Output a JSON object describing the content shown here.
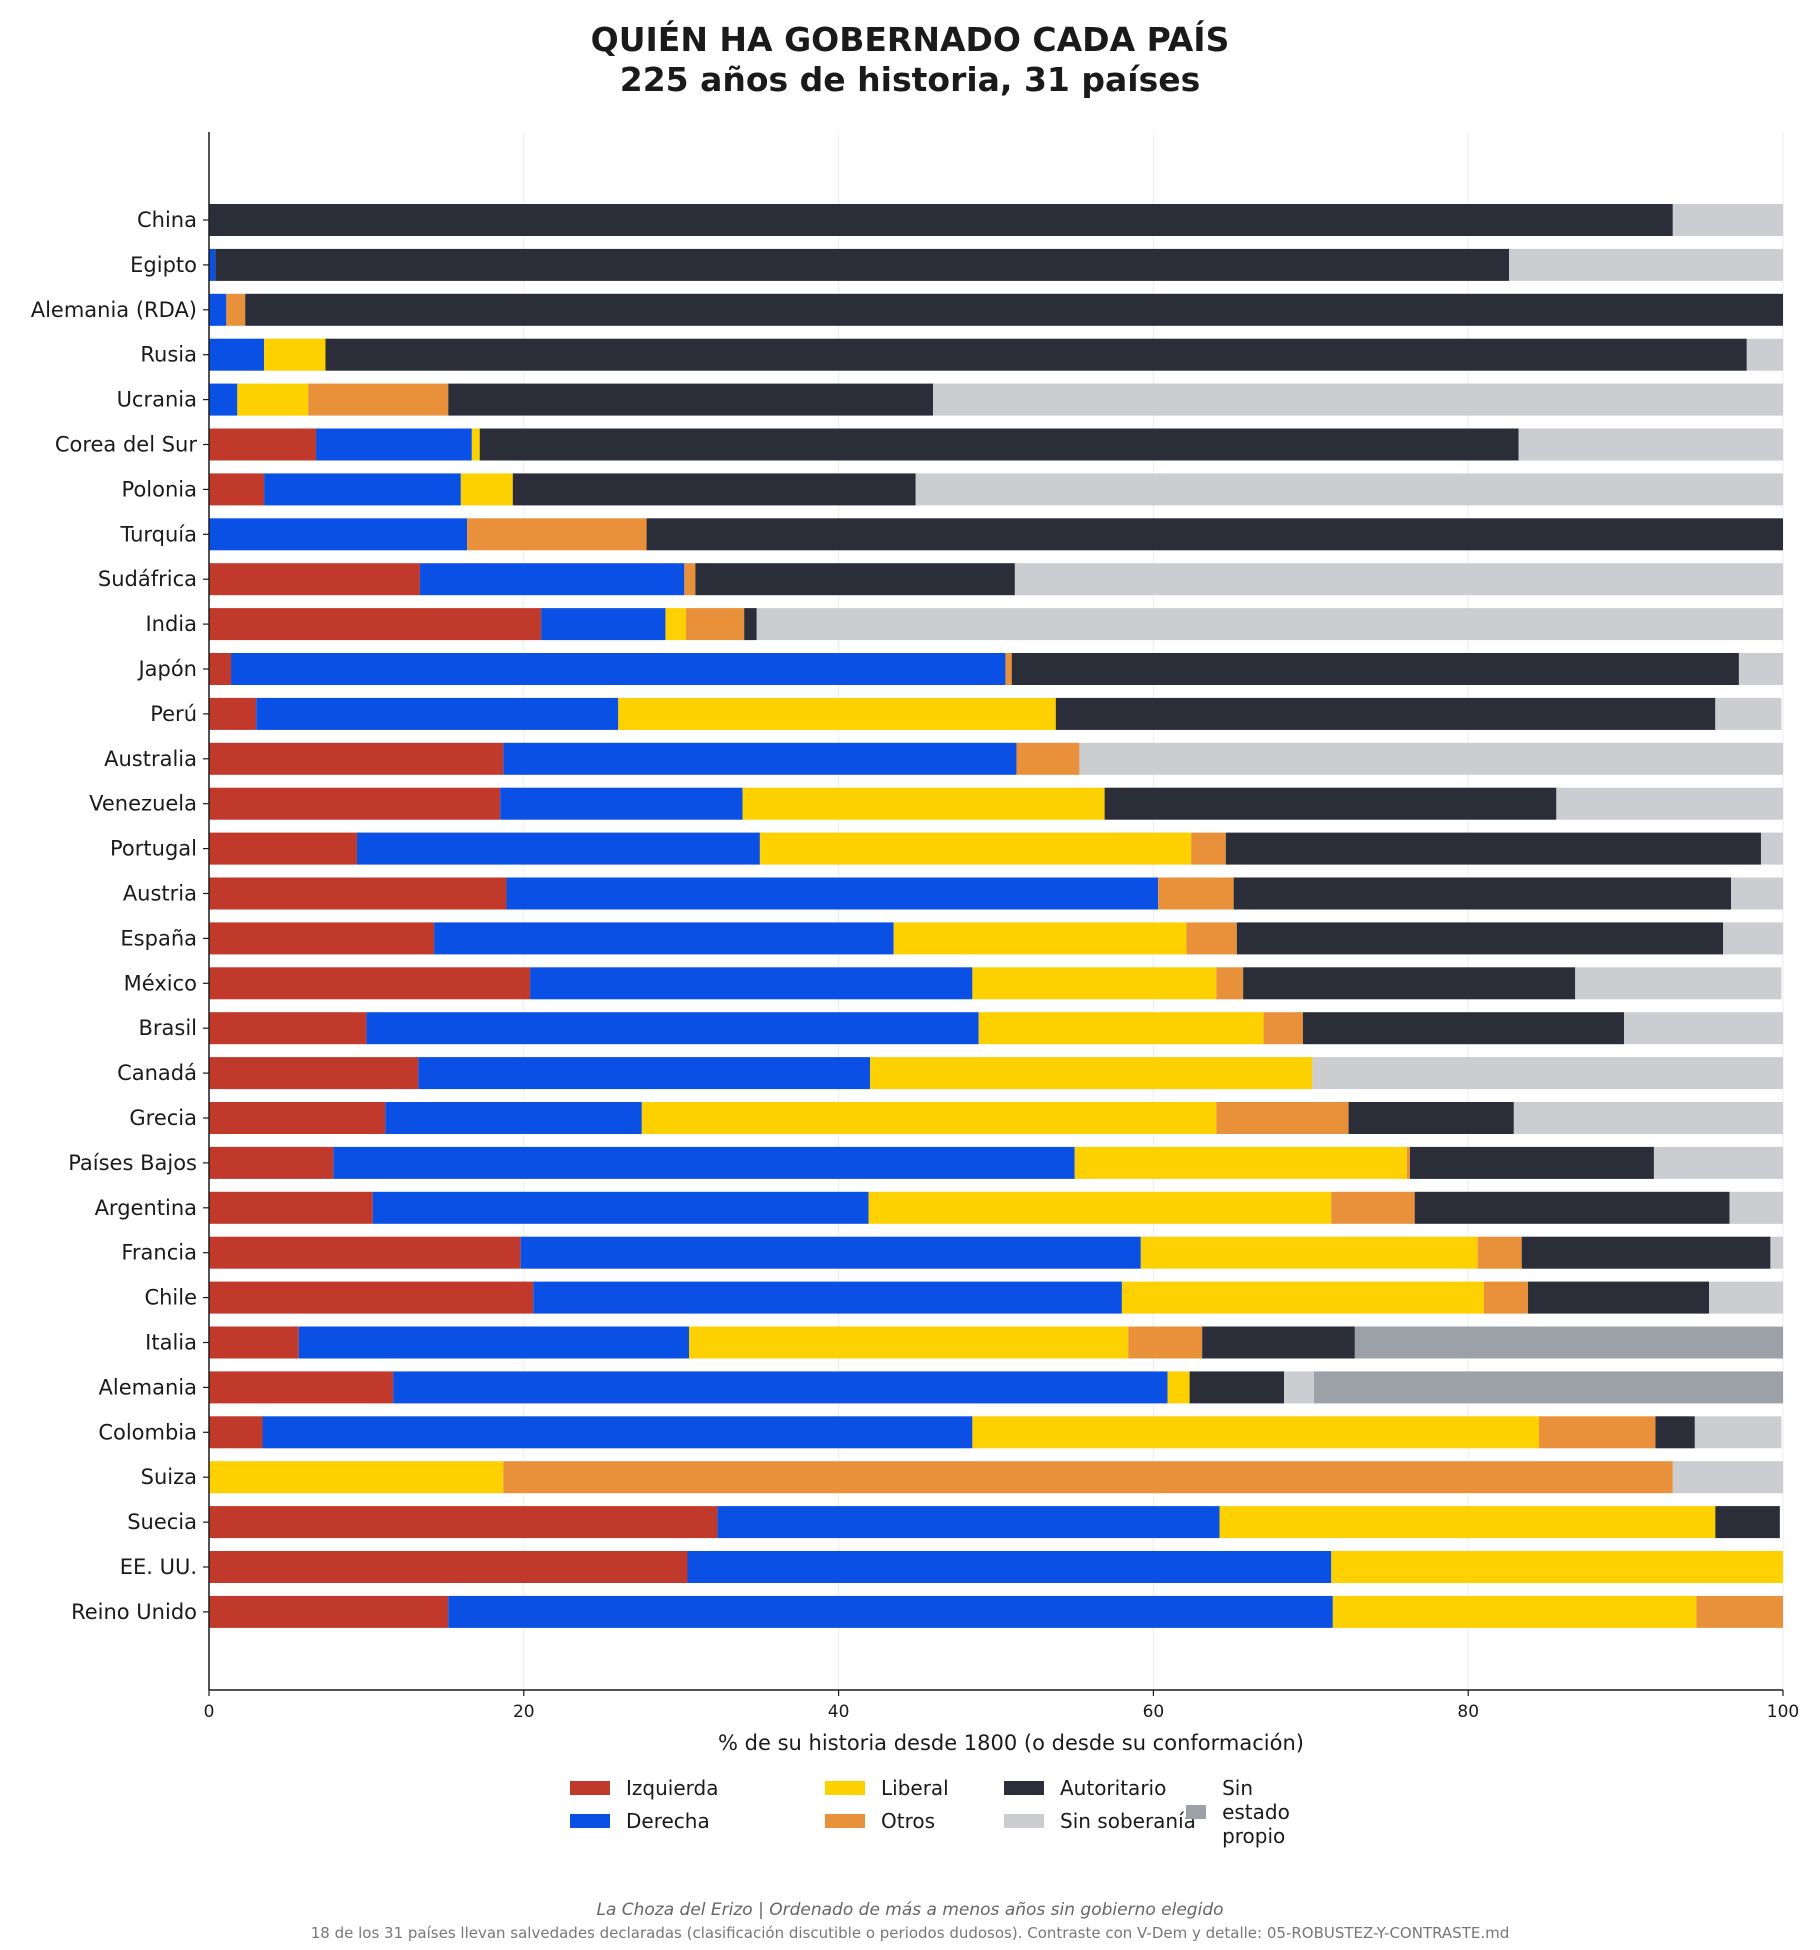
{
  "title_line1": "QUIÉN HA GOBERNADO CADA PAÍS",
  "title_line2": "225 años de historia, 31 países",
  "footer_main": "La Choza del Erizo  |  Ordenado de más a menos años sin gobierno elegido",
  "footer_note": "18 de los 31 países llevan salvedades declaradas (clasificación discutible o periodos dudosos). Contraste con V-Dem y detalle: 05-ROBUSTEZ-Y-CONTRASTE.md",
  "chart_data": {
    "type": "bar",
    "orientation": "horizontal",
    "stacked": true,
    "xlabel": "% de su historia desde 1800 (o desde su conformación)",
    "xlim": [
      0,
      100
    ],
    "xticks": [
      0,
      20,
      40,
      60,
      80,
      100
    ],
    "grid": "vertical",
    "legend_position": "bottom",
    "categories": [
      "China",
      "Egipto",
      "Alemania (RDA)",
      "Rusia",
      "Ucrania",
      "Corea del Sur",
      "Polonia",
      "Turquía",
      "Sudáfrica",
      "India",
      "Japón",
      "Perú",
      "Australia",
      "Venezuela",
      "Portugal",
      "Austria",
      "España",
      "México",
      "Brasil",
      "Canadá",
      "Grecia",
      "Países Bajos",
      "Argentina",
      "Francia",
      "Chile",
      "Italia",
      "Alemania",
      "Colombia",
      "Suiza",
      "Suecia",
      "EE. UU.",
      "Reino Unido"
    ],
    "series": [
      {
        "name": "Izquierda",
        "color": "#c0392b",
        "values": [
          0,
          0,
          0,
          0,
          0,
          6.8,
          3.5,
          0,
          13.4,
          21.1,
          1.4,
          3.0,
          18.7,
          18.5,
          9.4,
          18.9,
          14.3,
          20.4,
          10.0,
          13.3,
          11.2,
          7.9,
          10.4,
          19.8,
          20.6,
          5.7,
          11.7,
          3.4,
          0,
          32.3,
          30.4,
          15.2
        ]
      },
      {
        "name": "Derecha",
        "color": "#0b50e5",
        "values": [
          0,
          0.4,
          1.1,
          3.5,
          1.8,
          9.9,
          12.5,
          16.4,
          16.8,
          7.9,
          49.2,
          23.0,
          32.6,
          15.4,
          25.6,
          41.4,
          29.2,
          28.1,
          38.9,
          28.7,
          16.3,
          47.1,
          31.5,
          39.4,
          37.4,
          24.8,
          49.2,
          45.1,
          0,
          31.9,
          40.9,
          56.2
        ]
      },
      {
        "name": "Liberal",
        "color": "#fdd000",
        "values": [
          0,
          0,
          0,
          3.9,
          4.5,
          0.5,
          3.3,
          0,
          0,
          1.3,
          0,
          27.8,
          0,
          23.0,
          27.4,
          0,
          18.6,
          15.5,
          18.1,
          28.1,
          36.5,
          21.1,
          29.4,
          21.4,
          23.0,
          27.9,
          1.4,
          36.0,
          18.7,
          31.5,
          28.7,
          23.1
        ]
      },
      {
        "name": "Otros",
        "color": "#e8913a",
        "values": [
          0,
          0,
          1.2,
          0,
          8.9,
          0,
          0,
          11.4,
          0.7,
          3.7,
          0.4,
          0,
          4.0,
          0,
          2.2,
          4.8,
          3.2,
          1.7,
          2.5,
          0,
          8.4,
          0.2,
          5.3,
          2.8,
          2.8,
          4.7,
          0,
          7.4,
          74.3,
          0,
          0,
          5.5
        ]
      },
      {
        "name": "Autoritario",
        "color": "#2b2e39",
        "values": [
          93.0,
          82.2,
          97.7,
          90.3,
          30.8,
          66.0,
          25.6,
          72.2,
          20.3,
          0.8,
          46.2,
          41.9,
          0,
          28.7,
          34.0,
          31.6,
          30.9,
          21.1,
          20.4,
          0,
          10.5,
          15.5,
          20.0,
          15.8,
          11.5,
          9.7,
          6.0,
          2.5,
          0,
          4.1,
          0,
          0
        ]
      },
      {
        "name": "Sin soberanía",
        "color": "#cccdd1",
        "values": [
          7.0,
          17.4,
          0,
          2.3,
          54.0,
          16.8,
          55.1,
          0,
          48.8,
          65.2,
          2.8,
          4.2,
          44.7,
          14.4,
          1.4,
          3.3,
          3.8,
          13.1,
          10.1,
          29.9,
          17.1,
          8.2,
          3.4,
          0.8,
          4.7,
          0,
          1.9,
          5.5,
          7.0,
          0,
          0,
          0
        ]
      },
      {
        "name": "Sin estado propio",
        "color": "#9ca1a8",
        "values": [
          0,
          0,
          0,
          0,
          0,
          0,
          0,
          0,
          0,
          0,
          0,
          0,
          0,
          0,
          0,
          0,
          0,
          0,
          0,
          0,
          0,
          0,
          0,
          0,
          0,
          27.2,
          29.8,
          0,
          0,
          0,
          0,
          0
        ]
      }
    ]
  }
}
